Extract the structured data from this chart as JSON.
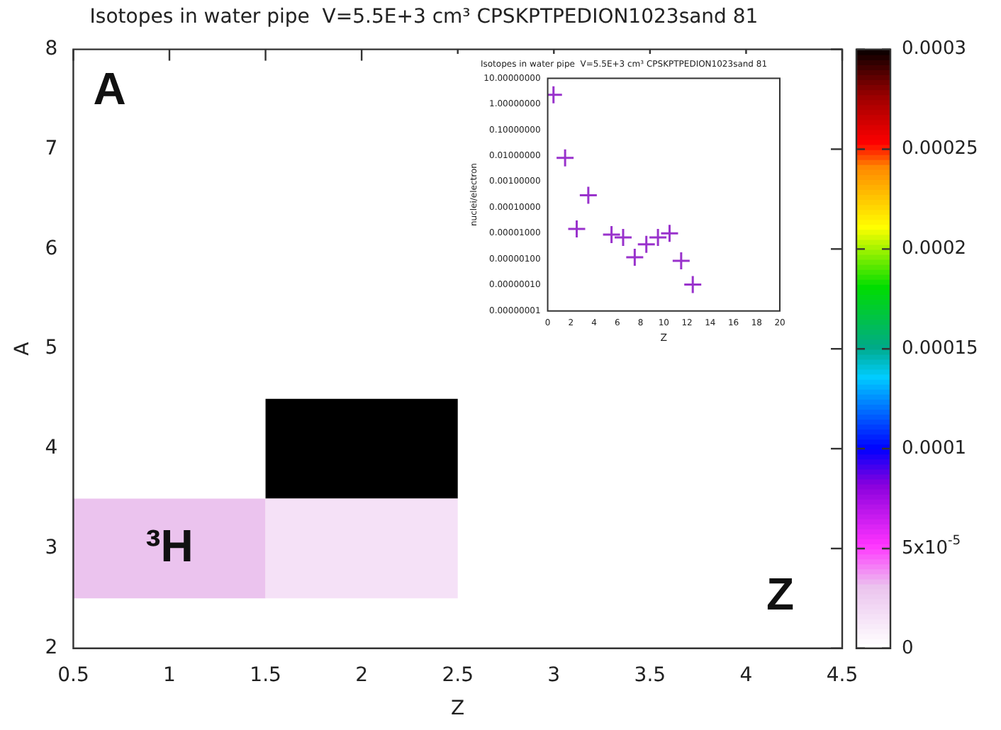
{
  "chart_data": [
    {
      "type": "heatmap",
      "title": "Isotopes in water pipe  V=5.5E+3 cm³ CPSKPTPEDION1023sand 81",
      "xlabel": "Z",
      "ylabel": "A",
      "x": [
        1,
        2
      ],
      "y": [
        4,
        3
      ],
      "cells": [
        [
          null,
          0.0003
        ],
        [
          3e-05,
          1.5e-05
        ]
      ],
      "xlim": [
        0.5,
        4.5
      ],
      "xticks": [
        0.5,
        1,
        1.5,
        2,
        2.5,
        3,
        3.5,
        4,
        4.5
      ],
      "ylim": [
        2,
        8
      ],
      "yticks": [
        2,
        3,
        4,
        5,
        6,
        7,
        8
      ],
      "clim": [
        0,
        0.0003
      ],
      "cticks": [
        0,
        {
          "value": 5e-05,
          "label": "5x10$^{-5}$"
        },
        0.0001,
        0.00015,
        0.0002,
        0.00025,
        0.0003
      ],
      "annotations": [
        "A",
        "Z",
        "³H"
      ]
    },
    {
      "type": "scatter",
      "title": "Isotopes in water pipe  V=5.5E+3 cm³ CPSKPTPEDION1023sand 81",
      "xlabel": "Z",
      "ylabel": "nuclei/electron",
      "x": [
        0.5,
        1.5,
        2.5,
        3.5,
        5.5,
        6.5,
        7.5,
        8.5,
        9.5,
        10.5,
        11.5,
        12.5
      ],
      "values": [
        2.3,
        0.0083,
        1.5e-05,
        0.0003,
        9e-06,
        7e-06,
        1.2e-06,
        3.8e-06,
        7e-06,
        1e-05,
        8.7e-07,
        1.05e-07
      ],
      "color": "#9932cc",
      "marker": "cross",
      "log": "y",
      "xlim": [
        0,
        20
      ],
      "xticks": [
        0,
        2,
        4,
        6,
        8,
        10,
        12,
        14,
        16,
        18,
        20
      ],
      "ylim": [
        1e-08,
        10
      ],
      "yticks": [
        {
          "value": 1e-08,
          "label": "0.00000001"
        },
        {
          "value": 1e-07,
          "label": "0.00000010"
        },
        {
          "value": 1e-06,
          "label": "0.00000100"
        },
        {
          "value": 1e-05,
          "label": "0.00001000"
        },
        {
          "value": 0.0001,
          "label": "0.00010000"
        },
        {
          "value": 0.001,
          "label": "0.00100000"
        },
        {
          "value": 0.01,
          "label": "0.01000000"
        },
        {
          "value": 0.1,
          "label": "0.10000000"
        },
        {
          "value": 1,
          "label": "1.00000000"
        },
        {
          "value": 10,
          "label": "10.00000000"
        }
      ]
    }
  ]
}
